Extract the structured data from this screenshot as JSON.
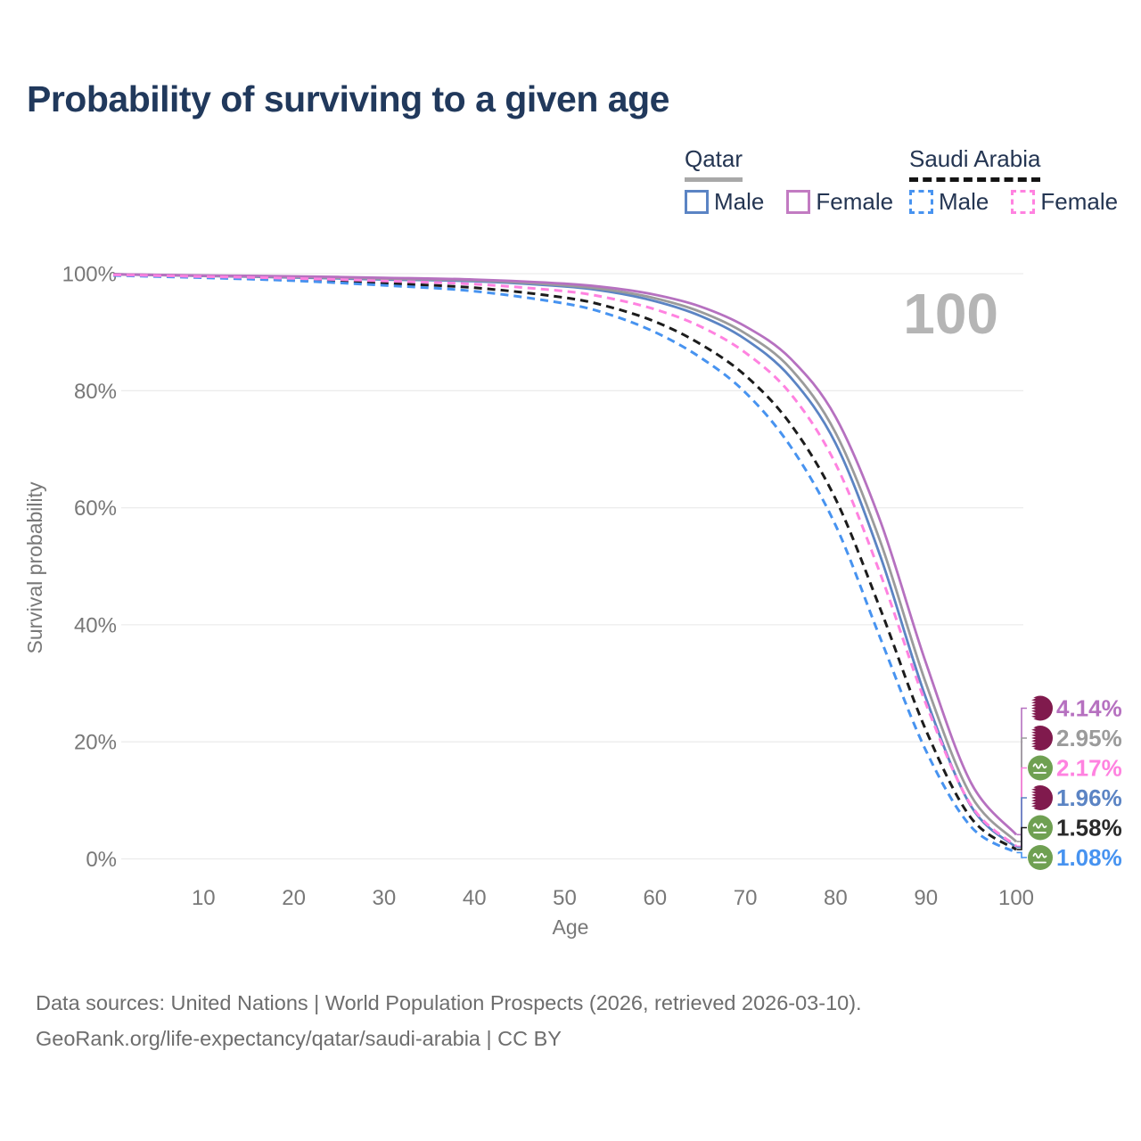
{
  "header": {
    "title": "Probability of surviving to a given age"
  },
  "legend": {
    "groups": [
      {
        "label": "Qatar",
        "underline_style": "solid",
        "items": [
          {
            "label": "Male",
            "color": "#5b84c4",
            "dashed": false
          },
          {
            "label": "Female",
            "color": "#c27bc2",
            "dashed": false
          }
        ]
      },
      {
        "label": "Saudi Arabia",
        "underline_style": "dashed",
        "items": [
          {
            "label": "Male",
            "color": "#4793f0",
            "dashed": true
          },
          {
            "label": "Female",
            "color": "#ff82e0",
            "dashed": true
          }
        ]
      }
    ]
  },
  "chart_data": {
    "type": "line",
    "title": "Probability of surviving to a given age",
    "xlabel": "Age",
    "ylabel": "Survival probability",
    "xlim": [
      0,
      100
    ],
    "ylim": [
      0,
      100
    ],
    "grid": "horizontal",
    "hover_age_watermark": "100",
    "x_ticks": [
      10,
      20,
      30,
      40,
      50,
      60,
      70,
      80,
      90,
      100
    ],
    "y_ticks": [
      {
        "value": 0,
        "label": "0%"
      },
      {
        "value": 20,
        "label": "20%"
      },
      {
        "value": 40,
        "label": "40%"
      },
      {
        "value": 60,
        "label": "60%"
      },
      {
        "value": 80,
        "label": "80%"
      },
      {
        "value": 100,
        "label": "100%"
      }
    ],
    "ages": [
      0,
      10,
      20,
      30,
      40,
      50,
      55,
      60,
      65,
      70,
      75,
      80,
      85,
      90,
      95,
      100
    ],
    "series": [
      {
        "name": "Qatar Female",
        "flag": "qatar",
        "color": "#b671c0",
        "dash": false,
        "end_label": "4.14%",
        "values": [
          99.9,
          99.7,
          99.55,
          99.3,
          99.0,
          98.3,
          97.6,
          96.4,
          94.4,
          91.0,
          85.5,
          75.5,
          57.5,
          33.5,
          13.0,
          4.14
        ]
      },
      {
        "name": "Qatar Both sexes",
        "flag": "qatar",
        "color": "#9b9b9b",
        "dash": false,
        "end_label": "2.95%",
        "values": [
          99.9,
          99.65,
          99.45,
          99.15,
          98.85,
          98.0,
          97.2,
          95.8,
          93.5,
          89.8,
          83.8,
          72.8,
          54.0,
          30.0,
          10.8,
          2.95
        ]
      },
      {
        "name": "Saudi Arabia Female",
        "flag": "saudi",
        "color": "#ff82e0",
        "dash": true,
        "end_label": "2.17%",
        "values": [
          99.8,
          99.5,
          99.2,
          98.75,
          98.2,
          97.0,
          95.8,
          93.9,
          91.0,
          86.5,
          79.5,
          67.5,
          48.5,
          26.5,
          9.2,
          2.17
        ]
      },
      {
        "name": "Qatar Male",
        "flag": "qatar",
        "color": "#5b84c4",
        "dash": false,
        "end_label": "1.96%",
        "values": [
          99.9,
          99.6,
          99.35,
          99.0,
          98.7,
          97.8,
          96.9,
          95.3,
          92.8,
          88.8,
          82.3,
          71.0,
          51.5,
          27.5,
          9.0,
          1.96
        ]
      },
      {
        "name": "Saudi Arabia Both sexes",
        "flag": "saudi",
        "color": "#1c1c1c",
        "dash": true,
        "end_label": "1.58%",
        "values": [
          99.8,
          99.4,
          99.0,
          98.35,
          97.6,
          95.9,
          94.3,
          91.8,
          88.0,
          82.6,
          74.3,
          61.5,
          42.5,
          22.0,
          7.0,
          1.58
        ]
      },
      {
        "name": "Saudi Arabia Male",
        "flag": "saudi",
        "color": "#4793f0",
        "dash": true,
        "end_label": "1.08%",
        "values": [
          99.7,
          99.3,
          98.8,
          98.0,
          97.0,
          94.9,
          93.0,
          90.0,
          85.7,
          79.7,
          70.5,
          57.0,
          37.5,
          18.5,
          5.5,
          1.08
        ]
      }
    ],
    "flag_colors": {
      "qatar_maroon": "#801a4d",
      "saudi_green": "#6fa052"
    }
  },
  "footer": {
    "line1": "Data sources: United Nations | World Population Prospects (2026, retrieved 2026-03-10).",
    "line2": "GeoRank.org/life-expectancy/qatar/saudi-arabia | CC BY"
  }
}
